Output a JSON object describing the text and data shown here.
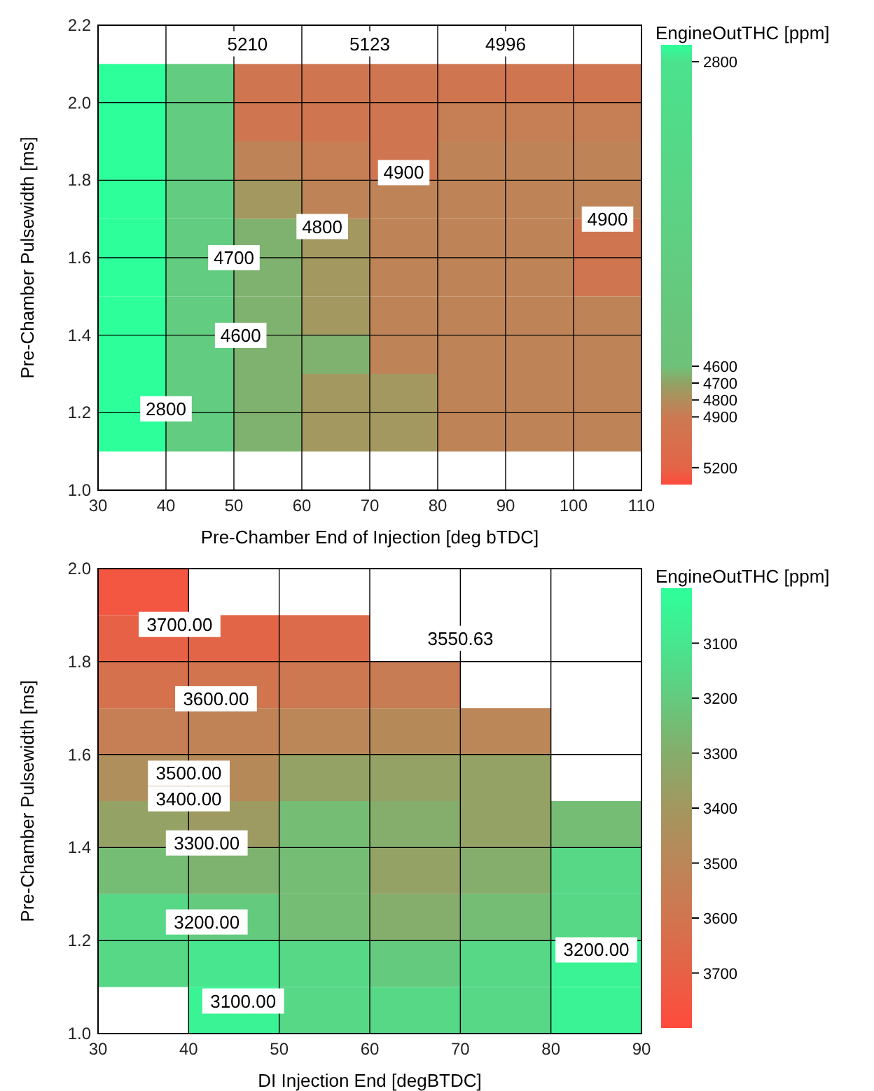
{
  "chart_data": [
    {
      "type": "heatmap",
      "xlabel": "Pre-Chamber End of Injection [deg bTDC]",
      "ylabel": "Pre-Chamber Pulsewidth [ms]",
      "clabel": "EngineOutTHC [ppm]",
      "x": [
        35,
        45,
        55,
        65,
        75,
        85,
        95,
        105
      ],
      "y": [
        2.05,
        1.95,
        1.85,
        1.75,
        1.65,
        1.55,
        1.45,
        1.35,
        1.25,
        1.15
      ],
      "cells": [
        [
          2700,
          4000,
          4950,
          4950,
          4950,
          4950,
          4950,
          4950
        ],
        [
          2700,
          4000,
          4950,
          4950,
          4950,
          4880,
          4880,
          4880
        ],
        [
          2700,
          4000,
          4850,
          4880,
          4950,
          4850,
          4850,
          4850
        ],
        [
          2700,
          4000,
          4750,
          4850,
          4850,
          4850,
          4850,
          4850
        ],
        [
          2700,
          4000,
          4650,
          4750,
          4850,
          4850,
          4850,
          4950
        ],
        [
          2700,
          4000,
          4650,
          4750,
          4850,
          4850,
          4850,
          4950
        ],
        [
          2700,
          4000,
          4650,
          4750,
          4850,
          4850,
          4850,
          4850
        ],
        [
          2700,
          4000,
          4650,
          4650,
          4850,
          4850,
          4850,
          4850
        ],
        [
          2700,
          4000,
          4650,
          4750,
          4750,
          4850,
          4850,
          4850
        ],
        [
          2700,
          4000,
          4650,
          4750,
          4750,
          4850,
          4850,
          4850
        ]
      ],
      "clim": [
        2700,
        5300
      ],
      "cticks": [
        2800,
        4600,
        4700,
        4800,
        4900,
        5200
      ],
      "xlim": [
        30,
        110
      ],
      "ylim": [
        1.0,
        2.2
      ],
      "xticks": [
        30,
        40,
        50,
        60,
        70,
        80,
        90,
        100,
        110
      ],
      "yticks": [
        {
          "value": 1.0,
          "label": "1.0"
        },
        {
          "value": 1.2,
          "label": "1.2"
        },
        {
          "value": 1.4,
          "label": "1.4"
        },
        {
          "value": 1.6,
          "label": "1.6"
        },
        {
          "value": 1.8,
          "label": "1.8"
        },
        {
          "value": 2.0,
          "label": "2.0"
        },
        {
          "value": 2.2,
          "label": "2.2"
        }
      ],
      "grid": true,
      "annotations": [
        "5210",
        "5123",
        "4996",
        "4900",
        "4800",
        "4700",
        "4600",
        "2800",
        "4900"
      ]
    },
    {
      "type": "heatmap",
      "xlabel": "DI Injection End [degBTDC]",
      "ylabel": "Pre-Chamber Pulsewidth [ms]",
      "clabel": "EngineOutTHC [ppm]",
      "x": [
        35,
        45,
        55,
        65,
        75,
        85
      ],
      "y": [
        1.95,
        1.85,
        1.75,
        1.65,
        1.55,
        1.45,
        1.35,
        1.25,
        1.15,
        1.05
      ],
      "cells": [
        [
          3750,
          null,
          null,
          null,
          null,
          null
        ],
        [
          3700,
          3680,
          3650,
          null,
          null,
          null
        ],
        [
          3620,
          3600,
          3580,
          3560,
          null,
          null
        ],
        [
          3550,
          3520,
          3500,
          3480,
          3500,
          null
        ],
        [
          3450,
          3480,
          3350,
          3350,
          3350,
          null
        ],
        [
          3350,
          3380,
          3250,
          3300,
          3350,
          3250
        ],
        [
          3250,
          3280,
          3250,
          3350,
          3300,
          3150
        ],
        [
          3150,
          3200,
          3250,
          3300,
          3250,
          3150
        ],
        [
          3150,
          3100,
          3150,
          3200,
          3150,
          3050
        ],
        [
          null,
          3050,
          3150,
          3150,
          3150,
          3050
        ]
      ],
      "clim": [
        3000,
        3800
      ],
      "cticks": [
        3100,
        3200,
        3300,
        3400,
        3500,
        3600,
        3700
      ],
      "xlim": [
        30,
        90
      ],
      "ylim": [
        1.0,
        2.0
      ],
      "xticks": [
        30,
        40,
        50,
        60,
        70,
        80,
        90
      ],
      "yticks": [
        {
          "value": 1.0,
          "label": "1.0"
        },
        {
          "value": 1.2,
          "label": "1.2"
        },
        {
          "value": 1.4,
          "label": "1.4"
        },
        {
          "value": 1.6,
          "label": "1.6"
        },
        {
          "value": 1.8,
          "label": "1.8"
        },
        {
          "value": 2.0,
          "label": "2.0"
        }
      ],
      "grid": true,
      "annotations": [
        "3700.00",
        "3550.63",
        "3600.00",
        "3500.00",
        "3400.00",
        "3300.00",
        "3200.00",
        "3100.00",
        "3200.00"
      ]
    }
  ]
}
